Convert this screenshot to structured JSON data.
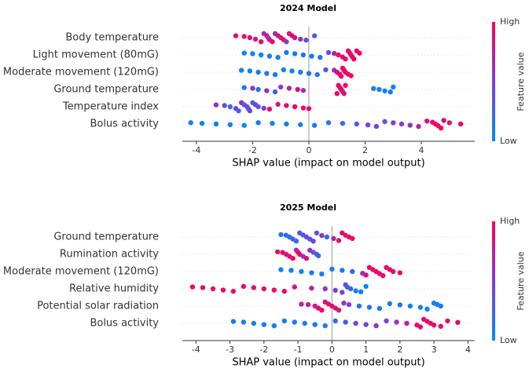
{
  "chart_data": [
    {
      "type": "beeswarm",
      "title": "2024 Model",
      "xlabel": "SHAP value (impact on model output)",
      "xlim": [
        -4.5,
        5.9
      ],
      "xticks": [
        -4,
        -2,
        0,
        2,
        4
      ],
      "colors": [
        "#008afb",
        "#7e3ed6",
        "#ff0052"
      ],
      "colorbar": {
        "label": "Feature value",
        "high": "High",
        "low": "Low"
      },
      "series": [
        {
          "name": "Body temperature",
          "values": [
            -2.6,
            -2.3,
            -2.1,
            -1.9,
            -1.7,
            -1.6,
            -1.5,
            -1.45,
            -1.4,
            -1.3,
            -1.2,
            -1.1,
            -1.0,
            -0.9,
            -0.8,
            -0.7,
            -0.6,
            -0.5,
            -0.3,
            -0.1,
            0.2
          ],
          "feature_values": [
            0.9,
            0.85,
            0.9,
            0.8,
            0.9,
            0.6,
            0.9,
            0.5,
            0.85,
            0.9,
            0.6,
            0.9,
            0.8,
            0.9,
            0.55,
            0.9,
            0.85,
            0.9,
            0.6,
            0.4,
            0.3
          ]
        },
        {
          "name": "Light movement (80mG)",
          "values": [
            -2.3,
            -2.0,
            -1.7,
            -1.4,
            -1.1,
            -0.8,
            -0.5,
            -0.2,
            0.1,
            0.4,
            0.7,
            0.9,
            1.05,
            1.2,
            1.3,
            1.4,
            1.45,
            1.5,
            1.55,
            1.6,
            1.7,
            1.8
          ],
          "feature_values": [
            0.05,
            0.08,
            0.05,
            0.1,
            0.05,
            0.1,
            0.08,
            0.12,
            0.1,
            0.15,
            0.35,
            0.7,
            0.9,
            0.95,
            0.9,
            0.95,
            0.85,
            0.95,
            0.9,
            0.95,
            0.9,
            0.95
          ]
        },
        {
          "name": "Moderate movement (120mG)",
          "values": [
            -2.4,
            -2.1,
            -1.8,
            -1.5,
            -1.2,
            -0.9,
            -0.6,
            -0.3,
            0.0,
            0.3,
            0.6,
            0.9,
            1.0,
            1.1,
            1.15,
            1.2,
            1.25,
            1.3,
            1.4,
            1.5
          ],
          "feature_values": [
            0.05,
            0.08,
            0.05,
            0.1,
            0.05,
            0.1,
            0.08,
            0.1,
            0.12,
            0.15,
            0.3,
            0.6,
            0.9,
            0.95,
            0.85,
            0.95,
            0.9,
            0.95,
            0.9,
            0.95
          ]
        },
        {
          "name": "Ground temperature",
          "values": [
            -2.3,
            -2.0,
            -1.8,
            -1.5,
            -1.2,
            -1.0,
            -0.7,
            -0.4,
            -0.2,
            1.0,
            1.05,
            1.1,
            1.15,
            1.2,
            1.25,
            1.3,
            2.3,
            2.5,
            2.7,
            2.9,
            3.0
          ],
          "feature_values": [
            0.1,
            0.5,
            0.2,
            0.6,
            0.3,
            0.5,
            0.7,
            0.9,
            0.6,
            0.9,
            0.95,
            0.85,
            0.95,
            0.9,
            0.8,
            0.95,
            0.05,
            0.08,
            0.05,
            0.1,
            0.05
          ]
        },
        {
          "name": "Temperature index",
          "values": [
            -3.3,
            -3.0,
            -2.8,
            -2.6,
            -2.5,
            -2.4,
            -2.3,
            -2.2,
            -2.15,
            -2.1,
            -2.0,
            -1.9,
            -1.8,
            -1.6,
            -1.4,
            -1.1,
            -0.8,
            -0.5,
            -0.2,
            0.0
          ],
          "feature_values": [
            0.6,
            0.4,
            0.2,
            0.5,
            0.3,
            0.6,
            0.25,
            0.5,
            0.35,
            0.45,
            0.2,
            0.55,
            0.3,
            0.5,
            0.9,
            0.85,
            0.9,
            0.95,
            0.9,
            0.95
          ]
        },
        {
          "name": "Bolus activity",
          "values": [
            -4.2,
            -3.8,
            -3.3,
            -2.8,
            -2.3,
            -1.8,
            -1.3,
            -0.8,
            -0.3,
            0.2,
            0.7,
            1.2,
            1.7,
            2.1,
            2.4,
            2.7,
            3.0,
            3.3,
            3.6,
            3.9,
            4.2,
            4.4,
            4.5,
            4.6,
            4.7,
            4.8,
            5.0,
            5.4
          ],
          "feature_values": [
            0.05,
            0.08,
            0.05,
            0.1,
            0.05,
            0.1,
            0.08,
            0.1,
            0.12,
            0.1,
            0.15,
            0.2,
            0.3,
            0.45,
            0.5,
            0.4,
            0.55,
            0.5,
            0.6,
            0.7,
            0.85,
            0.9,
            0.95,
            0.9,
            0.95,
            0.9,
            0.85,
            0.95
          ]
        }
      ]
    },
    {
      "type": "beeswarm",
      "title": "2025 Model",
      "xlabel": "SHAP value (impact on model output)",
      "xlim": [
        -4.4,
        4.2
      ],
      "xticks": [
        -4,
        -3,
        -2,
        -1,
        0,
        1,
        2,
        3,
        4
      ],
      "colors": [
        "#008afb",
        "#7e3ed6",
        "#ff0052"
      ],
      "colorbar": {
        "label": "Feature value",
        "high": "High",
        "low": "Low"
      },
      "series": [
        {
          "name": "Ground temperature",
          "values": [
            -1.5,
            -1.35,
            -1.25,
            -1.15,
            -1.05,
            -0.95,
            -0.85,
            -0.75,
            -0.65,
            -0.55,
            -0.45,
            -0.3,
            -0.15,
            0.05,
            0.2,
            0.3,
            0.4,
            0.5,
            0.6
          ],
          "feature_values": [
            0.1,
            0.2,
            0.15,
            0.3,
            0.2,
            0.4,
            0.25,
            0.45,
            0.3,
            0.5,
            0.35,
            0.6,
            0.2,
            0.7,
            0.9,
            0.95,
            0.85,
            0.9,
            0.95
          ]
        },
        {
          "name": "Rumination activity",
          "values": [
            -1.6,
            -1.45,
            -1.35,
            -1.25,
            -1.15,
            -1.05,
            -1.0,
            -0.95,
            -0.85,
            -0.75,
            -0.65,
            -0.55,
            -0.45,
            -0.4
          ],
          "feature_values": [
            0.9,
            0.95,
            0.85,
            0.9,
            0.95,
            0.6,
            0.9,
            0.95,
            0.5,
            0.9,
            0.6,
            0.4,
            0.3,
            0.25
          ]
        },
        {
          "name": "Moderate movement (120mG)",
          "values": [
            -1.5,
            -1.2,
            -0.9,
            -0.6,
            -0.3,
            0.0,
            0.3,
            0.6,
            0.9,
            1.0,
            1.1,
            1.2,
            1.3,
            1.4,
            1.5,
            1.6,
            1.7,
            1.8,
            2.0
          ],
          "feature_values": [
            0.05,
            0.08,
            0.05,
            0.1,
            0.08,
            0.12,
            0.1,
            0.2,
            0.6,
            0.9,
            0.95,
            0.9,
            0.95,
            0.85,
            0.95,
            0.9,
            0.95,
            0.9,
            0.95
          ]
        },
        {
          "name": "Relative humidity",
          "values": [
            -4.1,
            -3.8,
            -3.5,
            -3.2,
            -2.9,
            -2.6,
            -2.3,
            -2.0,
            -1.7,
            -1.4,
            -1.1,
            -0.6,
            -0.2,
            0.1,
            0.3,
            0.4,
            0.45,
            0.55,
            0.7,
            0.85,
            1.0
          ],
          "feature_values": [
            0.95,
            0.9,
            0.95,
            0.9,
            0.95,
            0.9,
            0.95,
            0.9,
            0.95,
            0.9,
            0.85,
            0.7,
            0.6,
            0.5,
            0.45,
            0.4,
            0.3,
            0.2,
            0.1,
            0.08,
            0.05
          ]
        },
        {
          "name": "Potential solar radiation",
          "values": [
            -0.9,
            -0.7,
            -0.5,
            -0.4,
            -0.3,
            -0.2,
            -0.1,
            0.0,
            0.1,
            0.2,
            0.35,
            0.5,
            0.8,
            1.1,
            1.4,
            1.7,
            2.0,
            2.3,
            2.6,
            2.8,
            3.0,
            3.1,
            3.2
          ],
          "feature_values": [
            0.7,
            0.75,
            0.8,
            0.9,
            0.95,
            0.85,
            0.9,
            0.95,
            0.8,
            0.85,
            0.6,
            0.5,
            0.2,
            0.15,
            0.1,
            0.12,
            0.1,
            0.08,
            0.1,
            0.05,
            0.08,
            0.05,
            0.1
          ]
        },
        {
          "name": "Bolus activity",
          "values": [
            -2.9,
            -2.6,
            -2.3,
            -2.0,
            -1.7,
            -1.4,
            -1.1,
            -0.8,
            -0.5,
            -0.2,
            0.1,
            0.4,
            0.7,
            1.0,
            1.3,
            1.6,
            1.9,
            2.2,
            2.5,
            2.6,
            2.7,
            2.8,
            2.9,
            3.0,
            3.2,
            3.4,
            3.7
          ],
          "feature_values": [
            0.05,
            0.08,
            0.05,
            0.1,
            0.08,
            0.1,
            0.12,
            0.1,
            0.15,
            0.12,
            0.2,
            0.3,
            0.45,
            0.5,
            0.55,
            0.45,
            0.6,
            0.7,
            0.9,
            0.95,
            0.85,
            0.9,
            0.95,
            0.9,
            0.85,
            0.95,
            0.9
          ]
        }
      ]
    }
  ]
}
